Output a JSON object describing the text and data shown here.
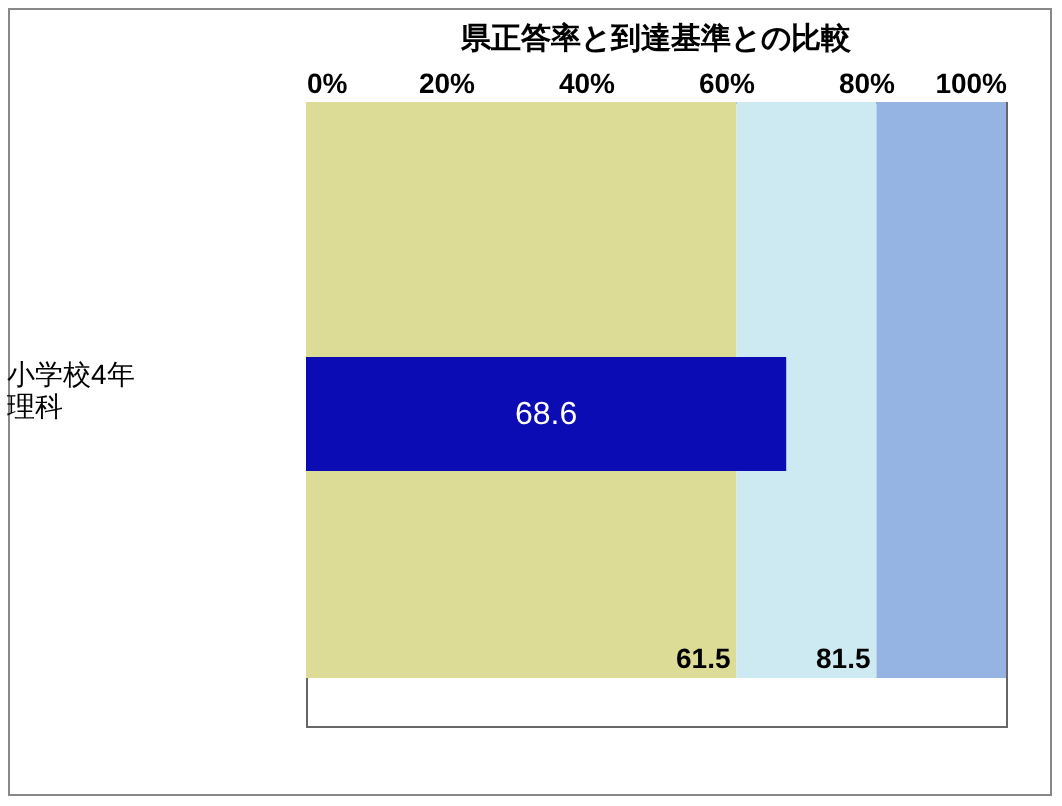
{
  "chart_data": {
    "type": "bar",
    "orientation": "horizontal",
    "title": "県正答率と到達基準との比較",
    "categories": [
      "小学校4年理科"
    ],
    "values": [
      68.6
    ],
    "color": "#0c0cb4",
    "data_labels": true,
    "xlim": [
      0,
      100
    ],
    "xticks": [
      {
        "value": 0,
        "label": "0%"
      },
      {
        "value": 20,
        "label": "20%"
      },
      {
        "value": 40,
        "label": "40%"
      },
      {
        "value": 60,
        "label": "60%"
      },
      {
        "value": 80,
        "label": "80%"
      },
      {
        "value": 100,
        "label": "100%"
      }
    ],
    "bands": [
      {
        "axis": "x",
        "from": 0,
        "to": 61.5,
        "label": "61.5",
        "color": "#dcdc96"
      },
      {
        "axis": "x",
        "from": 61.5,
        "to": 81.5,
        "label": "81.5",
        "color": "#cdeaf2"
      },
      {
        "axis": "x",
        "from": 81.5,
        "to": 100,
        "label": null,
        "color": "#95b4e4"
      }
    ],
    "grid": false
  }
}
